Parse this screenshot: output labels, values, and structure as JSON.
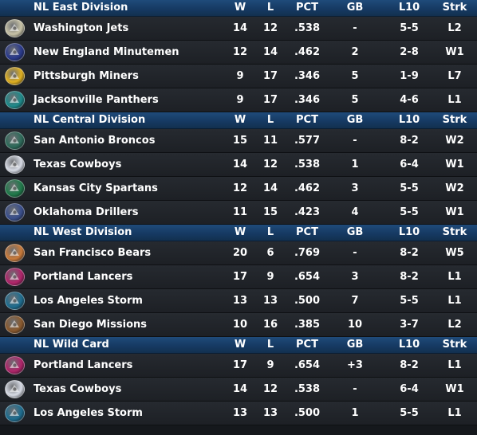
{
  "columns": {
    "w": "W",
    "l": "L",
    "pct": "PCT",
    "gb": "GB",
    "l10": "L10",
    "strk": "Strk"
  },
  "divisions": [
    {
      "title": "NL East Division",
      "teams": [
        {
          "name": "Washington Jets",
          "w": "14",
          "l": "12",
          "pct": ".538",
          "gb": "-",
          "l10": "5-5",
          "strk": "L2",
          "logo_icon": "jet-plane-icon",
          "logo_color": "#c9c4a8"
        },
        {
          "name": "New England Minutemen",
          "w": "12",
          "l": "14",
          "pct": ".462",
          "gb": "2",
          "l10": "2-8",
          "strk": "W1",
          "logo_icon": "minuteman-icon",
          "logo_color": "#2a3a8c"
        },
        {
          "name": "Pittsburgh Miners",
          "w": "9",
          "l": "17",
          "pct": ".346",
          "gb": "5",
          "l10": "1-9",
          "strk": "L7",
          "logo_icon": "miner-icon",
          "logo_color": "#e0b020"
        },
        {
          "name": "Jacksonville Panthers",
          "w": "9",
          "l": "17",
          "pct": ".346",
          "gb": "5",
          "l10": "4-6",
          "strk": "L1",
          "logo_icon": "panther-icon",
          "logo_color": "#1d8a8a"
        }
      ]
    },
    {
      "title": "NL Central Division",
      "teams": [
        {
          "name": "San Antonio Broncos",
          "w": "15",
          "l": "11",
          "pct": ".577",
          "gb": "-",
          "l10": "8-2",
          "strk": "W2",
          "logo_icon": "bronco-icon",
          "logo_color": "#2e6b5a"
        },
        {
          "name": "Texas Cowboys",
          "w": "14",
          "l": "12",
          "pct": ".538",
          "gb": "1",
          "l10": "6-4",
          "strk": "W1",
          "logo_icon": "cowboy-icon",
          "logo_color": "#d8dce6"
        },
        {
          "name": "Kansas City Spartans",
          "w": "12",
          "l": "14",
          "pct": ".462",
          "gb": "3",
          "l10": "5-5",
          "strk": "W2",
          "logo_icon": "spartan-helmet-icon",
          "logo_color": "#1f7a4a"
        },
        {
          "name": "Oklahoma Drillers",
          "w": "11",
          "l": "15",
          "pct": ".423",
          "gb": "4",
          "l10": "5-5",
          "strk": "W1",
          "logo_icon": "drill-icon",
          "logo_color": "#3a4f8c"
        }
      ]
    },
    {
      "title": "NL West Division",
      "teams": [
        {
          "name": "San Francisco Bears",
          "w": "20",
          "l": "6",
          "pct": ".769",
          "gb": "-",
          "l10": "8-2",
          "strk": "W5",
          "logo_icon": "bear-icon",
          "logo_color": "#c97a3a"
        },
        {
          "name": "Portland Lancers",
          "w": "17",
          "l": "9",
          "pct": ".654",
          "gb": "3",
          "l10": "8-2",
          "strk": "L1",
          "logo_icon": "lancer-icon",
          "logo_color": "#b0246a"
        },
        {
          "name": "Los Angeles Storm",
          "w": "13",
          "l": "13",
          "pct": ".500",
          "gb": "7",
          "l10": "5-5",
          "strk": "L1",
          "logo_icon": "storm-icon",
          "logo_color": "#1e6d8f"
        },
        {
          "name": "San Diego Missions",
          "w": "10",
          "l": "16",
          "pct": ".385",
          "gb": "10",
          "l10": "3-7",
          "strk": "L2",
          "logo_icon": "mission-bell-icon",
          "logo_color": "#8a5a2e"
        }
      ]
    },
    {
      "title": "NL  Wild Card",
      "teams": [
        {
          "name": "Portland Lancers",
          "w": "17",
          "l": "9",
          "pct": ".654",
          "gb": "+3",
          "l10": "8-2",
          "strk": "L1",
          "logo_icon": "lancer-icon",
          "logo_color": "#b0246a"
        },
        {
          "name": "Texas Cowboys",
          "w": "14",
          "l": "12",
          "pct": ".538",
          "gb": "-",
          "l10": "6-4",
          "strk": "W1",
          "logo_icon": "cowboy-icon",
          "logo_color": "#d8dce6"
        },
        {
          "name": "Los Angeles Storm",
          "w": "13",
          "l": "13",
          "pct": ".500",
          "gb": "1",
          "l10": "5-5",
          "strk": "L1",
          "logo_icon": "storm-icon",
          "logo_color": "#1e6d8f"
        }
      ]
    }
  ],
  "colors": {
    "header_bg": "#1a4270",
    "row_bg": "#22252a",
    "text": "#ffffff"
  }
}
